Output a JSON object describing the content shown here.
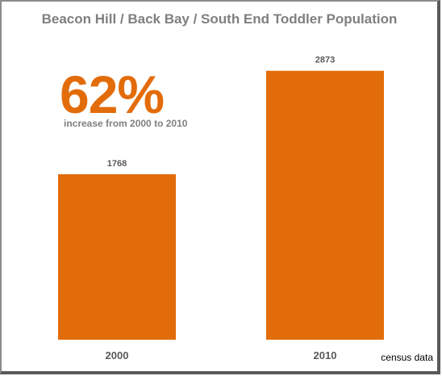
{
  "chart_data": {
    "type": "bar",
    "title": "Beacon Hill / Back Bay / South End Toddler Population",
    "categories": [
      "2000",
      "2010"
    ],
    "values": [
      1768,
      2873
    ],
    "data_labels": [
      "1768",
      "2873"
    ],
    "ylim": [
      0,
      3000
    ],
    "xlabel": "",
    "ylabel": "",
    "grid": false,
    "legend": "none",
    "bar_color": "#e36c0a",
    "annotation": {
      "big_text": "62%",
      "sub_text": "increase from 2000  to  2010",
      "color": "#e36c0a"
    },
    "source_note": "census data"
  }
}
